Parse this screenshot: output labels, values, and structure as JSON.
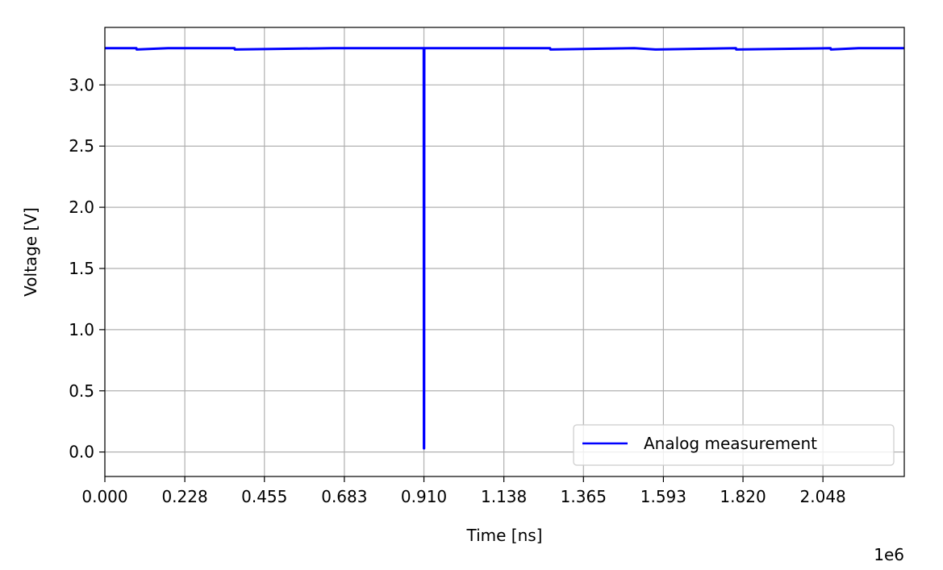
{
  "chart_data": {
    "type": "line",
    "title": "",
    "xlabel": "Time [ns]",
    "ylabel": "Voltage [V]",
    "x_offset_label": "1e6",
    "xlim": [
      0,
      2.28
    ],
    "ylim": [
      -0.2,
      3.47
    ],
    "grid": true,
    "legend_position": "lower-right",
    "x_ticks": [
      "0.000",
      "0.228",
      "0.455",
      "0.683",
      "0.910",
      "1.138",
      "1.365",
      "1.593",
      "1.820",
      "2.048"
    ],
    "y_ticks": [
      "0.0",
      "0.5",
      "1.0",
      "1.5",
      "2.0",
      "2.5",
      "3.0"
    ],
    "series": [
      {
        "name": "Analog measurement",
        "color": "#0000ff",
        "x": [
          0.0,
          0.09,
          0.0905,
          0.18,
          0.1805,
          0.37,
          0.3705,
          0.65,
          0.6505,
          0.909,
          0.9095,
          0.91,
          0.9105,
          0.911,
          1.27,
          1.2705,
          1.51,
          1.5705,
          1.8,
          1.8005,
          2.07,
          2.0705,
          2.15,
          2.1505,
          2.28
        ],
        "y": [
          3.3,
          3.3,
          3.29,
          3.3,
          3.3,
          3.3,
          3.29,
          3.3,
          3.3,
          3.3,
          3.3,
          0.03,
          0.03,
          3.3,
          3.3,
          3.29,
          3.3,
          3.29,
          3.3,
          3.29,
          3.3,
          3.29,
          3.3,
          3.3,
          3.3
        ]
      }
    ]
  }
}
